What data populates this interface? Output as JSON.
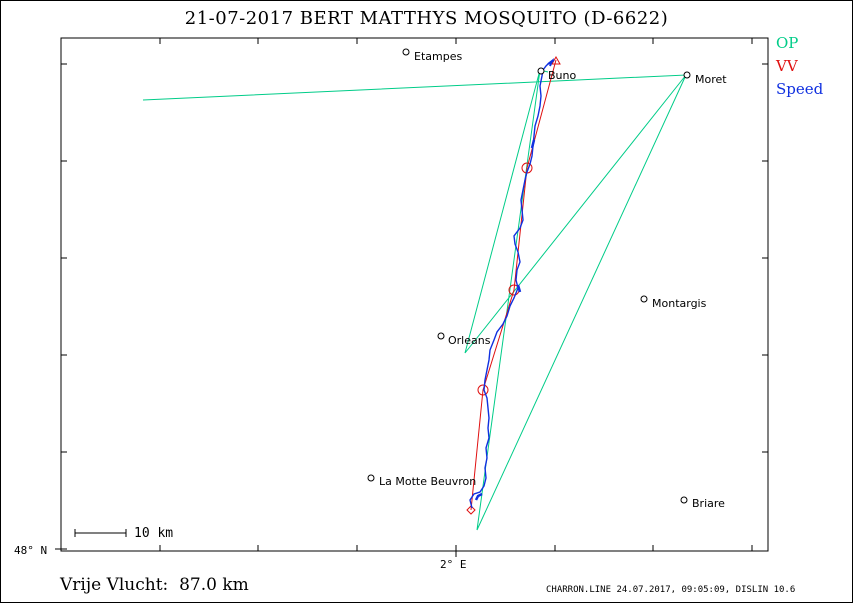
{
  "header": {
    "title": "21-07-2017   BERT MATTHYS   MOSQUITO (D-6622)"
  },
  "legend": {
    "op": "OP",
    "vv": "VV",
    "speed": "Speed"
  },
  "colors": {
    "op": "#00cc88",
    "vv": "#e01010",
    "speed": "#1030e0",
    "frame": "#000000"
  },
  "axes": {
    "lat_label": "48° N",
    "lon_label": "2° E"
  },
  "scale": {
    "label": "10 km"
  },
  "towns": {
    "etampes": "Etampes",
    "buno": "Buno",
    "moret": "Moret",
    "montargis": "Montargis",
    "orleans": "Orleans",
    "la_motte_beuvron": "La Motte Beuvron",
    "briare": "Briare"
  },
  "footer": {
    "distance": "Vrije Vlucht:  87.0 km",
    "software": "CHARRON.LINE 24.07.2017, 09:05:09, DISLIN 10.6"
  }
}
